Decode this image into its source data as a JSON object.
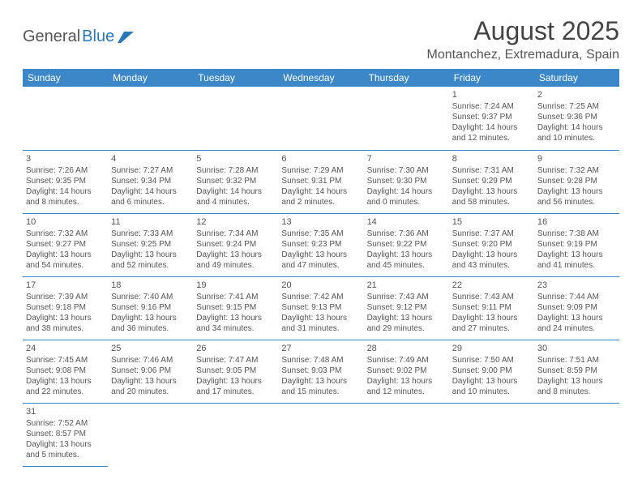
{
  "logo": {
    "text1": "General",
    "text2": "Blue"
  },
  "title": "August 2025",
  "location": "Montanchez, Extremadura, Spain",
  "colors": {
    "header_bg": "#3b87c8",
    "header_text": "#ffffff",
    "border": "#3b87c8",
    "body_text": "#555555",
    "logo_blue": "#2b78b7"
  },
  "typography": {
    "title_fontsize": 32,
    "location_fontsize": 16,
    "dayhead_fontsize": 12,
    "cell_fontsize": 10
  },
  "day_headers": [
    "Sunday",
    "Monday",
    "Tuesday",
    "Wednesday",
    "Thursday",
    "Friday",
    "Saturday"
  ],
  "weeks": [
    [
      null,
      null,
      null,
      null,
      null,
      {
        "n": "1",
        "sunrise": "Sunrise: 7:24 AM",
        "sunset": "Sunset: 9:37 PM",
        "daylight": "Daylight: 14 hours and 12 minutes."
      },
      {
        "n": "2",
        "sunrise": "Sunrise: 7:25 AM",
        "sunset": "Sunset: 9:36 PM",
        "daylight": "Daylight: 14 hours and 10 minutes."
      }
    ],
    [
      {
        "n": "3",
        "sunrise": "Sunrise: 7:26 AM",
        "sunset": "Sunset: 9:35 PM",
        "daylight": "Daylight: 14 hours and 8 minutes."
      },
      {
        "n": "4",
        "sunrise": "Sunrise: 7:27 AM",
        "sunset": "Sunset: 9:34 PM",
        "daylight": "Daylight: 14 hours and 6 minutes."
      },
      {
        "n": "5",
        "sunrise": "Sunrise: 7:28 AM",
        "sunset": "Sunset: 9:32 PM",
        "daylight": "Daylight: 14 hours and 4 minutes."
      },
      {
        "n": "6",
        "sunrise": "Sunrise: 7:29 AM",
        "sunset": "Sunset: 9:31 PM",
        "daylight": "Daylight: 14 hours and 2 minutes."
      },
      {
        "n": "7",
        "sunrise": "Sunrise: 7:30 AM",
        "sunset": "Sunset: 9:30 PM",
        "daylight": "Daylight: 14 hours and 0 minutes."
      },
      {
        "n": "8",
        "sunrise": "Sunrise: 7:31 AM",
        "sunset": "Sunset: 9:29 PM",
        "daylight": "Daylight: 13 hours and 58 minutes."
      },
      {
        "n": "9",
        "sunrise": "Sunrise: 7:32 AM",
        "sunset": "Sunset: 9:28 PM",
        "daylight": "Daylight: 13 hours and 56 minutes."
      }
    ],
    [
      {
        "n": "10",
        "sunrise": "Sunrise: 7:32 AM",
        "sunset": "Sunset: 9:27 PM",
        "daylight": "Daylight: 13 hours and 54 minutes."
      },
      {
        "n": "11",
        "sunrise": "Sunrise: 7:33 AM",
        "sunset": "Sunset: 9:25 PM",
        "daylight": "Daylight: 13 hours and 52 minutes."
      },
      {
        "n": "12",
        "sunrise": "Sunrise: 7:34 AM",
        "sunset": "Sunset: 9:24 PM",
        "daylight": "Daylight: 13 hours and 49 minutes."
      },
      {
        "n": "13",
        "sunrise": "Sunrise: 7:35 AM",
        "sunset": "Sunset: 9:23 PM",
        "daylight": "Daylight: 13 hours and 47 minutes."
      },
      {
        "n": "14",
        "sunrise": "Sunrise: 7:36 AM",
        "sunset": "Sunset: 9:22 PM",
        "daylight": "Daylight: 13 hours and 45 minutes."
      },
      {
        "n": "15",
        "sunrise": "Sunrise: 7:37 AM",
        "sunset": "Sunset: 9:20 PM",
        "daylight": "Daylight: 13 hours and 43 minutes."
      },
      {
        "n": "16",
        "sunrise": "Sunrise: 7:38 AM",
        "sunset": "Sunset: 9:19 PM",
        "daylight": "Daylight: 13 hours and 41 minutes."
      }
    ],
    [
      {
        "n": "17",
        "sunrise": "Sunrise: 7:39 AM",
        "sunset": "Sunset: 9:18 PM",
        "daylight": "Daylight: 13 hours and 38 minutes."
      },
      {
        "n": "18",
        "sunrise": "Sunrise: 7:40 AM",
        "sunset": "Sunset: 9:16 PM",
        "daylight": "Daylight: 13 hours and 36 minutes."
      },
      {
        "n": "19",
        "sunrise": "Sunrise: 7:41 AM",
        "sunset": "Sunset: 9:15 PM",
        "daylight": "Daylight: 13 hours and 34 minutes."
      },
      {
        "n": "20",
        "sunrise": "Sunrise: 7:42 AM",
        "sunset": "Sunset: 9:13 PM",
        "daylight": "Daylight: 13 hours and 31 minutes."
      },
      {
        "n": "21",
        "sunrise": "Sunrise: 7:43 AM",
        "sunset": "Sunset: 9:12 PM",
        "daylight": "Daylight: 13 hours and 29 minutes."
      },
      {
        "n": "22",
        "sunrise": "Sunrise: 7:43 AM",
        "sunset": "Sunset: 9:11 PM",
        "daylight": "Daylight: 13 hours and 27 minutes."
      },
      {
        "n": "23",
        "sunrise": "Sunrise: 7:44 AM",
        "sunset": "Sunset: 9:09 PM",
        "daylight": "Daylight: 13 hours and 24 minutes."
      }
    ],
    [
      {
        "n": "24",
        "sunrise": "Sunrise: 7:45 AM",
        "sunset": "Sunset: 9:08 PM",
        "daylight": "Daylight: 13 hours and 22 minutes."
      },
      {
        "n": "25",
        "sunrise": "Sunrise: 7:46 AM",
        "sunset": "Sunset: 9:06 PM",
        "daylight": "Daylight: 13 hours and 20 minutes."
      },
      {
        "n": "26",
        "sunrise": "Sunrise: 7:47 AM",
        "sunset": "Sunset: 9:05 PM",
        "daylight": "Daylight: 13 hours and 17 minutes."
      },
      {
        "n": "27",
        "sunrise": "Sunrise: 7:48 AM",
        "sunset": "Sunset: 9:03 PM",
        "daylight": "Daylight: 13 hours and 15 minutes."
      },
      {
        "n": "28",
        "sunrise": "Sunrise: 7:49 AM",
        "sunset": "Sunset: 9:02 PM",
        "daylight": "Daylight: 13 hours and 12 minutes."
      },
      {
        "n": "29",
        "sunrise": "Sunrise: 7:50 AM",
        "sunset": "Sunset: 9:00 PM",
        "daylight": "Daylight: 13 hours and 10 minutes."
      },
      {
        "n": "30",
        "sunrise": "Sunrise: 7:51 AM",
        "sunset": "Sunset: 8:59 PM",
        "daylight": "Daylight: 13 hours and 8 minutes."
      }
    ],
    [
      {
        "n": "31",
        "sunrise": "Sunrise: 7:52 AM",
        "sunset": "Sunset: 8:57 PM",
        "daylight": "Daylight: 13 hours and 5 minutes."
      },
      null,
      null,
      null,
      null,
      null,
      null
    ]
  ]
}
